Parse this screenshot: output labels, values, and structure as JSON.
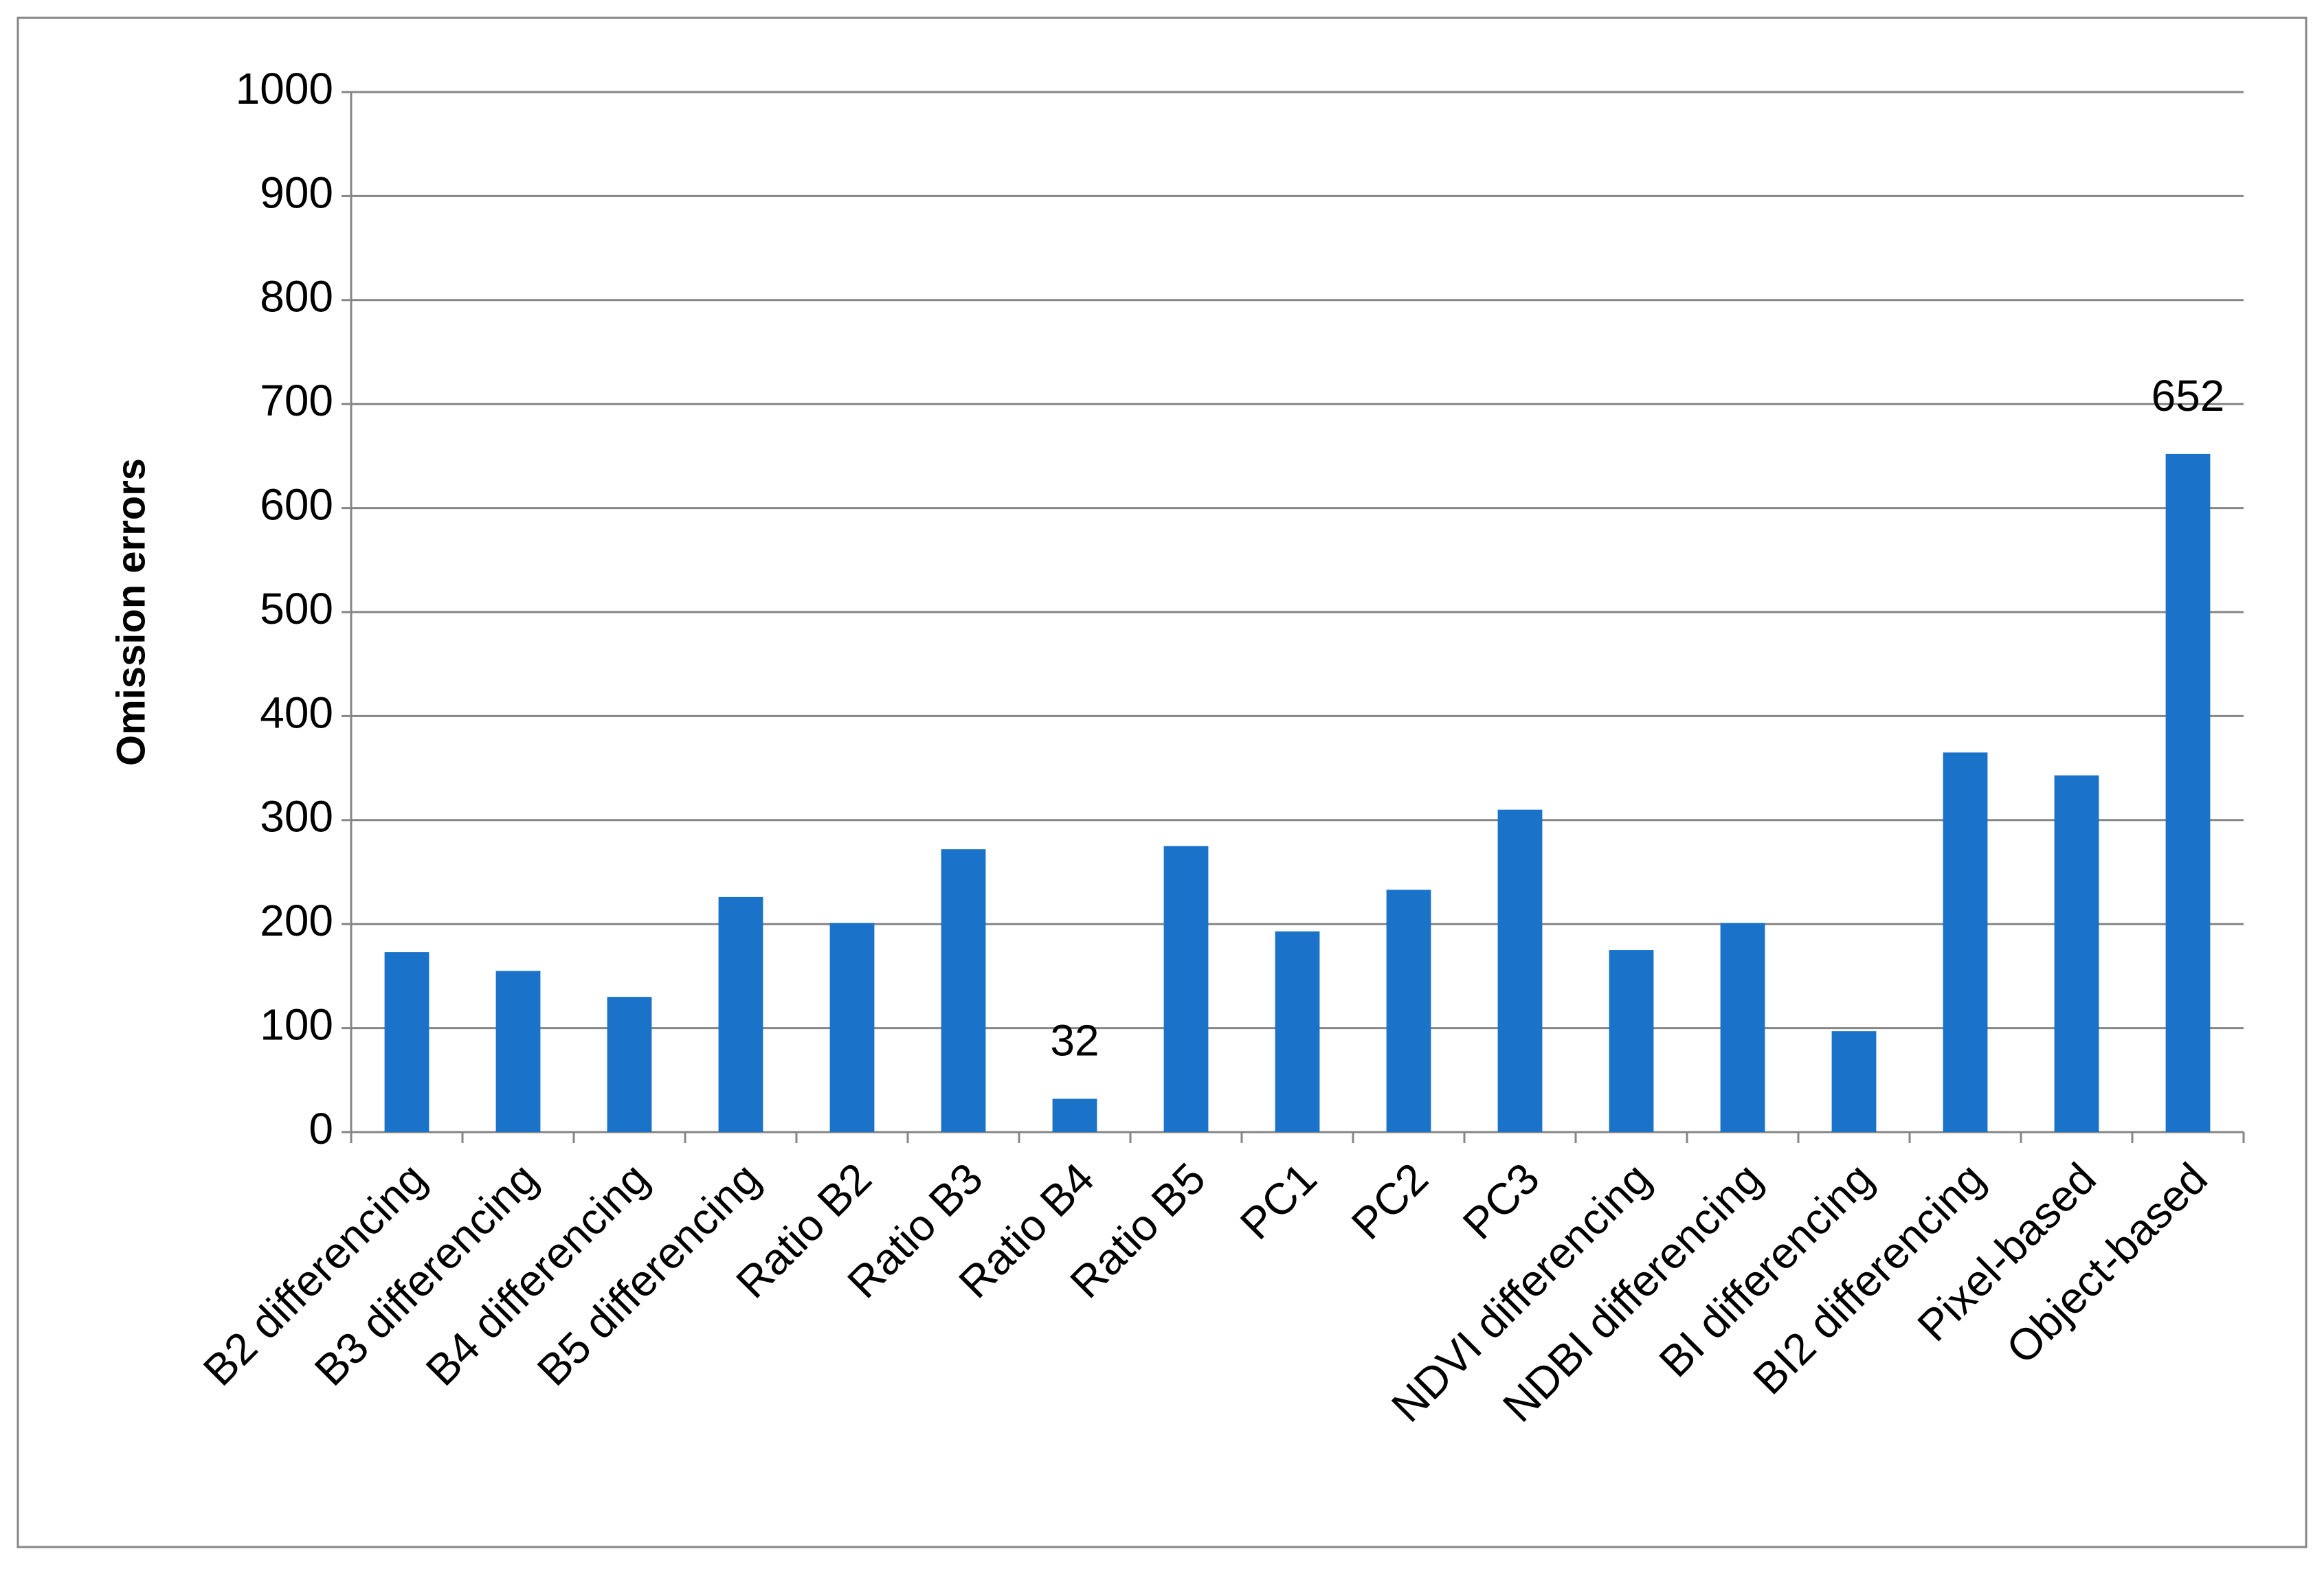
{
  "chart_data": {
    "type": "bar",
    "y_label": "Omission errors",
    "categories": [
      "B2 differencing",
      "B3 differencing",
      "B4 differencing",
      "B5 differencing",
      "Ratio B2",
      "Ratio B3",
      "Ratio B4",
      "Ratio B5",
      "PC1",
      "PC2",
      "PC3",
      "NDVI differencing",
      "NDBI differencing",
      "BI differencing",
      "BI2 differencing",
      "Pixel-based",
      "Object-based"
    ],
    "values": [
      173,
      155,
      130,
      226,
      201,
      272,
      32,
      275,
      193,
      233,
      310,
      175,
      201,
      97,
      365,
      343,
      652
    ],
    "value_labels": [
      null,
      null,
      null,
      null,
      null,
      null,
      "32",
      null,
      null,
      null,
      null,
      null,
      null,
      null,
      null,
      null,
      "652"
    ],
    "color": "#1a73c8",
    "ylim": [
      0,
      1000
    ],
    "yticks": [
      0,
      100,
      200,
      300,
      400,
      500,
      600,
      700,
      800,
      900,
      1000
    ],
    "grid": true
  }
}
